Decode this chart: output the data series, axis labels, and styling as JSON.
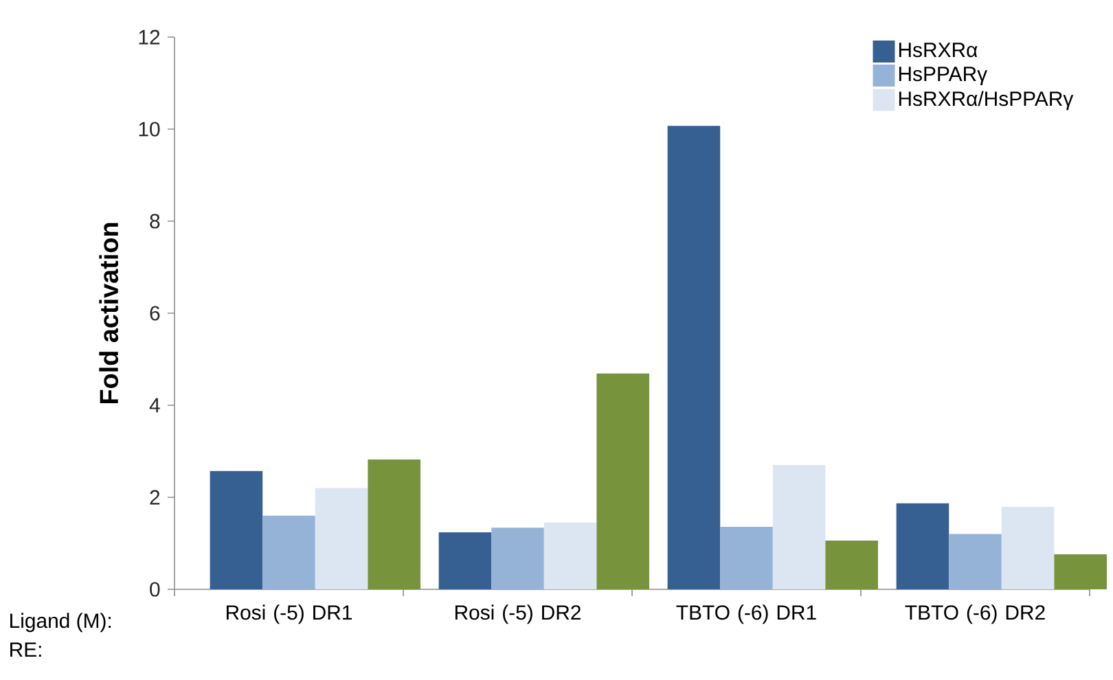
{
  "chart_data": {
    "type": "bar",
    "ylabel": "**Fold activation**",
    "categories": [
      "Rosi (-5) DR1",
      "Rosi (-5) DR2",
      "TBTO (-6) DR1",
      "TBTO (-6) DR2"
    ],
    "series": [
      {
        "name": "HsRXRα",
        "color": "#376092",
        "values": [
          2.57,
          1.24,
          10.07,
          1.87
        ]
      },
      {
        "name": "HsPPARγ",
        "color": "#95b3d7",
        "values": [
          1.6,
          1.34,
          1.36,
          1.2
        ]
      },
      {
        "name": "HsRXRα/HsPPARγ",
        "color": "#dce6f2",
        "values": [
          2.2,
          1.45,
          2.7,
          1.79
        ]
      },
      {
        "color": "#77933c",
        "values": [
          2.82,
          4.69,
          1.06,
          0.76
        ]
      }
    ],
    "ylim": [
      0,
      12
    ],
    "yticks": [
      0,
      2,
      4,
      6,
      8,
      10,
      12
    ],
    "legend": "top right",
    "annotations": [
      "Ligand (M):",
      "RE:"
    ]
  }
}
